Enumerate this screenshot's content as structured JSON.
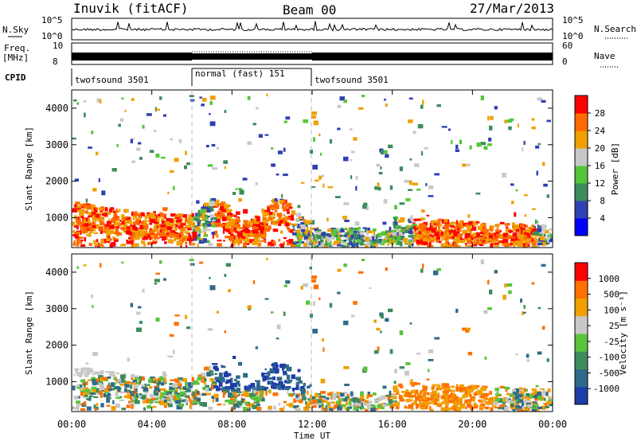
{
  "header": {
    "radar": "Inuvik (fitACF)",
    "beam": "Beam 00",
    "date": "27/Mar/2013"
  },
  "panels": {
    "nsky": {
      "label": "N.Sky",
      "ticks": [
        "10^5",
        "10^0"
      ],
      "right_label": "N.Search"
    },
    "freq": {
      "label_line1": "Freq.",
      "label_line2": "[MHz]",
      "left_ticks": [
        "10",
        "8"
      ],
      "right_ticks": [
        "60",
        "0"
      ],
      "right_label": "Nave"
    },
    "cpid": {
      "label": "CPID",
      "segments": [
        "twofsound 3501",
        "normal (fast) 151",
        "twofsound 3501"
      ]
    }
  },
  "x_axis": {
    "label": "Time UT",
    "ticks": [
      "00:00",
      "04:00",
      "08:00",
      "12:00",
      "16:00",
      "20:00",
      "00:00"
    ]
  },
  "power_panel": {
    "ylabel": "Slant Range [km]",
    "yticks": [
      "1000",
      "2000",
      "3000",
      "4000"
    ],
    "colorbar_label": "Power [dB]",
    "colorbar_ticks": [
      "28",
      "24",
      "20",
      "16",
      "12",
      "8",
      "4"
    ],
    "colors": [
      "#0000ff",
      "#2f3fb4",
      "#3c8c5c",
      "#54c53a",
      "#c8c8c8",
      "#f0a000",
      "#ff6a00",
      "#ff0000"
    ]
  },
  "velocity_panel": {
    "ylabel": "Slant Range [km]",
    "yticks": [
      "1000",
      "2000",
      "3000",
      "4000"
    ],
    "colorbar_label": "Velocity [m s⁻¹]",
    "colorbar_ticks": [
      "1000",
      "500",
      "100",
      "25",
      "-25",
      "-100",
      "-500",
      "-1000"
    ],
    "colors": [
      "#1e3ca8",
      "#2e6a8a",
      "#3c8c5c",
      "#5ac43c",
      "#c8c8c8",
      "#f0a000",
      "#ff7000",
      "#ff0000"
    ]
  },
  "chart_data": {
    "type": "heatmap",
    "title": "Inuvik (fitACF)  Beam 00  27/Mar/2013",
    "xlabel": "Time UT",
    "x": [
      "00:00",
      "04:00",
      "08:00",
      "12:00",
      "16:00",
      "20:00",
      "00:00"
    ],
    "xlim_hours": [
      0,
      24
    ],
    "ylabel": "Slant Range [km]",
    "ylim": [
      180,
      4500
    ],
    "yticks": [
      1000,
      2000,
      3000,
      4000
    ],
    "cpid_boundaries_hours": [
      6,
      12
    ],
    "series": [
      {
        "name": "Power [dB]",
        "colorbar": [
          4,
          8,
          12,
          16,
          20,
          24,
          28
        ]
      },
      {
        "name": "Velocity [m s⁻¹]",
        "colorbar": [
          -1000,
          -500,
          -100,
          -25,
          25,
          100,
          500,
          1000
        ]
      }
    ]
  }
}
